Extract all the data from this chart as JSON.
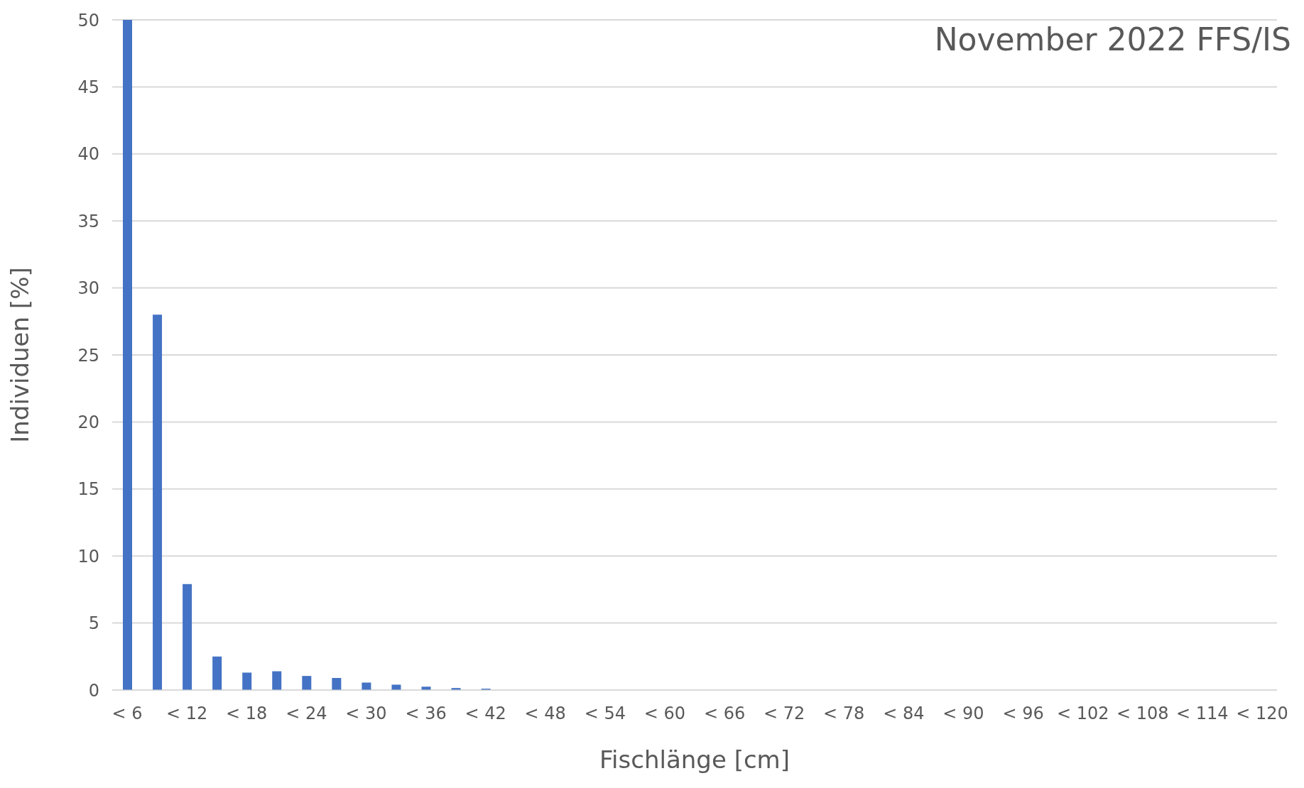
{
  "chart_data": {
    "type": "bar",
    "title": "November 2022 FFS/IS",
    "xlabel": "Fischlänge [cm]",
    "ylabel": "Individuen [%]",
    "categories": [
      "< 6",
      null,
      "< 12",
      null,
      "< 18",
      null,
      "< 24",
      null,
      "< 30",
      null,
      "< 36",
      null,
      "< 42",
      null,
      "< 48",
      null,
      "< 54",
      null,
      "< 60",
      null,
      "< 66",
      null,
      "< 72",
      null,
      "< 78",
      null,
      "< 84",
      null,
      "< 90",
      null,
      "< 96",
      null,
      "< 102",
      null,
      "< 108",
      null,
      "< 114",
      null,
      "< 120"
    ],
    "values": [
      50,
      28,
      7.9,
      2.5,
      1.3,
      1.4,
      1.05,
      0.9,
      0.55,
      0.4,
      0.25,
      0.15,
      0.1,
      0,
      0,
      0,
      0,
      0,
      0,
      0,
      0,
      0,
      0,
      0,
      0,
      0,
      0,
      0,
      0,
      0,
      0,
      0,
      0,
      0,
      0,
      0,
      0,
      0,
      0
    ],
    "color": "#4472c4",
    "ylim": [
      0,
      50
    ],
    "yticks": [
      0,
      5,
      10,
      15,
      20,
      25,
      30,
      35,
      40,
      45,
      50
    ],
    "grid": "y"
  }
}
